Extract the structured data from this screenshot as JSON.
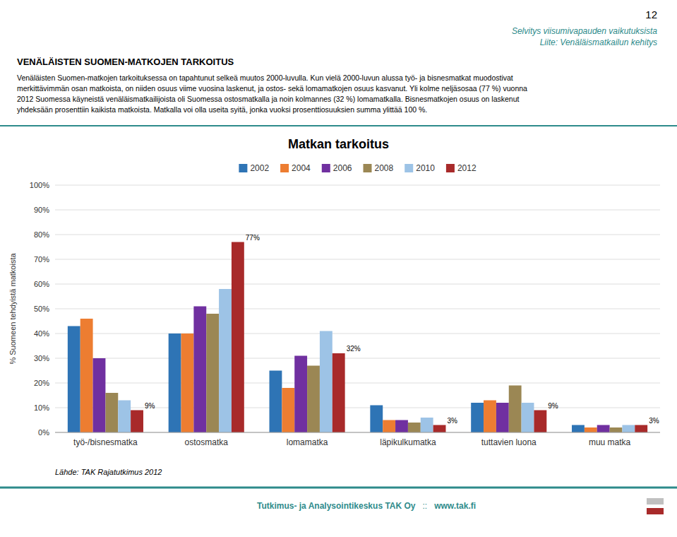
{
  "chart_data": {
    "type": "bar",
    "title": "Matkan tarkoitus",
    "ylabel": "% Suomeen tehdyistä matkoista",
    "categories": [
      "työ-/bisnesmatka",
      "ostosmatka",
      "lomamatka",
      "läpikulkumatka",
      "tuttavien luona",
      "muu matka"
    ],
    "series": [
      {
        "name": "2002",
        "color": "#2E74B5",
        "values": [
          43,
          40,
          25,
          11,
          12,
          3
        ]
      },
      {
        "name": "2004",
        "color": "#ED7D31",
        "values": [
          46,
          40,
          18,
          5,
          13,
          2
        ]
      },
      {
        "name": "2006",
        "color": "#7030A0",
        "values": [
          30,
          51,
          31,
          5,
          12,
          3
        ]
      },
      {
        "name": "2008",
        "color": "#9B8754",
        "values": [
          16,
          48,
          27,
          4,
          19,
          2
        ]
      },
      {
        "name": "2010",
        "color": "#9DC3E6",
        "values": [
          13,
          58,
          41,
          6,
          12,
          3
        ]
      },
      {
        "name": "2012",
        "color": "#A82A2A",
        "values": [
          9,
          77,
          32,
          3,
          9,
          3
        ],
        "data_labels": true,
        "value_labels": [
          "9%",
          "77%",
          "32%",
          "3%",
          "9%",
          "3%"
        ]
      }
    ],
    "ylim": [
      0,
      100
    ],
    "yticks": [
      {
        "value": 0,
        "label": "0%"
      },
      {
        "value": 10,
        "label": "10%"
      },
      {
        "value": 20,
        "label": "20%"
      },
      {
        "value": 30,
        "label": "30%"
      },
      {
        "value": 40,
        "label": "40%"
      },
      {
        "value": 50,
        "label": "50%"
      },
      {
        "value": 60,
        "label": "60%"
      },
      {
        "value": 70,
        "label": "70%"
      },
      {
        "value": 80,
        "label": "80%"
      },
      {
        "value": 90,
        "label": "90%"
      },
      {
        "value": 100,
        "label": "100%"
      }
    ],
    "grid": true,
    "legend": "top"
  },
  "page": {
    "page_number": "12",
    "subtitle1": "Selvitys viisumivapauden vaikutuksista",
    "subtitle2": "Liite: Venäläismatkailun kehitys",
    "header_title": "VENÄLÄISTEN SUOMEN-MATKOJEN TARKOITUS",
    "header_body": "Venäläisten Suomen-matkojen tarkoituksessa on tapahtunut selkeä muutos 2000-luvulla. Kun vielä 2000-luvun alussa työ- ja bisnesmatkat muodostivat\nmerkittävimmän osan matkoista, on niiden osuus viime vuosina laskenut, ja ostos- sekä lomamatkojen osuus kasvanut. Yli kolme neljäsosaa (77 %) vuonna\n2012 Suomessa käyneistä venäläismatkailijoista oli Suomessa ostosmatkalla ja noin kolmannes (32 %) lomamatkalla. Bisnesmatkojen osuus on laskenut\nyhdeksään prosenttiin kaikista matkoista. Matkalla voi olla useita syitä, jonka vuoksi prosenttiosuuksien summa ylittää 100 %.",
    "source_text": "Lähde: TAK Rajatutkimus 2012",
    "footer_left": "Tutkimus- ja Analysointikeskus TAK Oy",
    "footer_separator": "::",
    "footer_right": "www.tak.fi"
  }
}
